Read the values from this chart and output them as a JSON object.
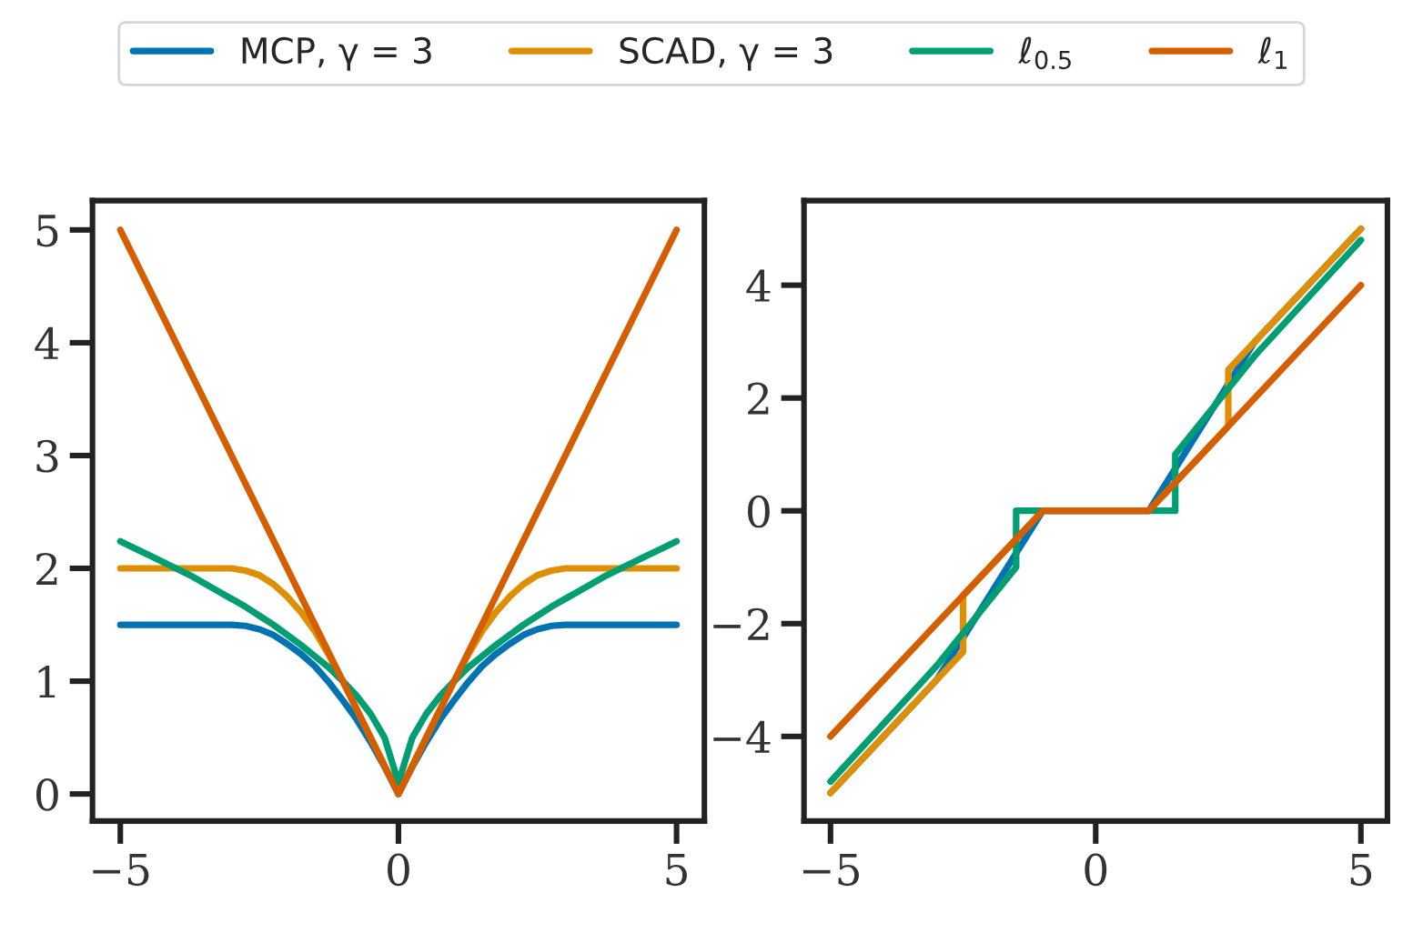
{
  "chart_data": [
    {
      "type": "line",
      "legend": "top",
      "marker": "none",
      "line_style": "solid",
      "grid": false,
      "xlim": [
        -5.5,
        5.5
      ],
      "ylim": [
        -0.24,
        5.26
      ],
      "xticks": [
        {
          "value": -5,
          "label": "−5"
        },
        0,
        5
      ],
      "yticks": [
        0,
        1,
        2,
        3,
        4,
        5
      ],
      "series": [
        {
          "name": "MCP, γ = 3",
          "color": "#0173b2",
          "x": [
            -5,
            -4.75,
            -4.5,
            -4.25,
            -4,
            -3.75,
            -3.5,
            -3.25,
            -3,
            -2.75,
            -2.5,
            -2.25,
            -2,
            -1.75,
            -1.5,
            -1.25,
            -1,
            -0.75,
            -0.5,
            -0.25,
            0,
            0.25,
            0.5,
            0.75,
            1,
            1.25,
            1.5,
            1.75,
            2,
            2.25,
            2.5,
            2.75,
            3,
            3.25,
            3.5,
            3.75,
            4,
            4.25,
            4.5,
            4.75,
            5
          ],
          "values": [
            1.5,
            1.5,
            1.5,
            1.5,
            1.5,
            1.5,
            1.5,
            1.5,
            1.5,
            1.49,
            1.46,
            1.41,
            1.33,
            1.24,
            1.13,
            0.99,
            0.83,
            0.66,
            0.46,
            0.24,
            0,
            0.24,
            0.46,
            0.66,
            0.83,
            0.99,
            1.13,
            1.24,
            1.33,
            1.41,
            1.46,
            1.49,
            1.5,
            1.5,
            1.5,
            1.5,
            1.5,
            1.5,
            1.5,
            1.5,
            1.5
          ]
        },
        {
          "name": "SCAD, γ = 3",
          "color": "#de8f05",
          "x": [
            -5,
            -4.75,
            -4.5,
            -4.25,
            -4,
            -3.75,
            -3.5,
            -3.25,
            -3,
            -2.75,
            -2.5,
            -2.25,
            -2,
            -1.75,
            -1.5,
            -1.25,
            -1,
            -0.75,
            -0.5,
            -0.25,
            0,
            0.25,
            0.5,
            0.75,
            1,
            1.25,
            1.5,
            1.75,
            2,
            2.25,
            2.5,
            2.75,
            3,
            3.25,
            3.5,
            3.75,
            4,
            4.25,
            4.5,
            4.75,
            5
          ],
          "values": [
            2,
            2,
            2,
            2,
            2,
            2,
            2,
            2,
            2,
            1.98,
            1.94,
            1.86,
            1.75,
            1.61,
            1.44,
            1.23,
            1,
            0.75,
            0.5,
            0.25,
            0,
            0.25,
            0.5,
            0.75,
            1,
            1.23,
            1.44,
            1.61,
            1.75,
            1.86,
            1.94,
            1.98,
            2,
            2,
            2,
            2,
            2,
            2,
            2,
            2,
            2
          ]
        },
        {
          "name": "ℓ$_{0.5}$",
          "color": "#029e73",
          "x": [
            -5,
            -4.75,
            -4.5,
            -4.25,
            -4,
            -3.75,
            -3.5,
            -3.25,
            -3,
            -2.75,
            -2.5,
            -2.25,
            -2,
            -1.75,
            -1.5,
            -1.25,
            -1,
            -0.75,
            -0.5,
            -0.25,
            0,
            0.25,
            0.5,
            0.75,
            1,
            1.25,
            1.5,
            1.75,
            2,
            2.25,
            2.5,
            2.75,
            3,
            3.25,
            3.5,
            3.75,
            4,
            4.25,
            4.5,
            4.75,
            5
          ],
          "values": [
            2.24,
            2.18,
            2.12,
            2.06,
            2,
            1.94,
            1.87,
            1.8,
            1.73,
            1.66,
            1.58,
            1.5,
            1.41,
            1.32,
            1.22,
            1.12,
            1,
            0.87,
            0.71,
            0.5,
            0.1,
            0.5,
            0.71,
            0.87,
            1,
            1.12,
            1.22,
            1.32,
            1.41,
            1.5,
            1.58,
            1.66,
            1.73,
            1.8,
            1.87,
            1.94,
            2,
            2.06,
            2.12,
            2.18,
            2.24
          ]
        },
        {
          "name": "ℓ$_{1}$",
          "color": "#d55e00",
          "x": [
            -5,
            0,
            5
          ],
          "values": [
            5,
            0,
            5
          ]
        }
      ]
    },
    {
      "type": "line",
      "marker": "none",
      "line_style": "solid",
      "grid": false,
      "xlim": [
        -5.5,
        5.5
      ],
      "ylim": [
        -5.5,
        5.5
      ],
      "xticks": [
        {
          "value": -5,
          "label": "−5"
        },
        0,
        5
      ],
      "yticks": [
        {
          "value": -4,
          "label": "−4"
        },
        {
          "value": -2,
          "label": "−2"
        },
        0,
        2,
        4
      ],
      "series": [
        {
          "color": "#0173b2",
          "x": [
            -5,
            -3,
            -1,
            1,
            3,
            5
          ],
          "values": [
            -5,
            -3,
            0,
            0,
            3,
            5
          ]
        },
        {
          "color": "#de8f05",
          "x": [
            -5,
            -2.5,
            -2.5,
            -1,
            1,
            2.5,
            2.5,
            5
          ],
          "values": [
            -5,
            -2.5,
            -1.5,
            0,
            0,
            1.5,
            2.5,
            5
          ]
        },
        {
          "color": "#029e73",
          "x": [
            -5,
            -3,
            -1.5,
            -1.5,
            1.5,
            1.5,
            3,
            5
          ],
          "values": [
            -4.8,
            -2.75,
            -1,
            0,
            0,
            1,
            2.75,
            4.8
          ]
        },
        {
          "color": "#d55e00",
          "x": [
            -5,
            -1,
            1,
            5
          ],
          "values": [
            -4,
            0,
            0,
            4
          ]
        }
      ]
    }
  ]
}
